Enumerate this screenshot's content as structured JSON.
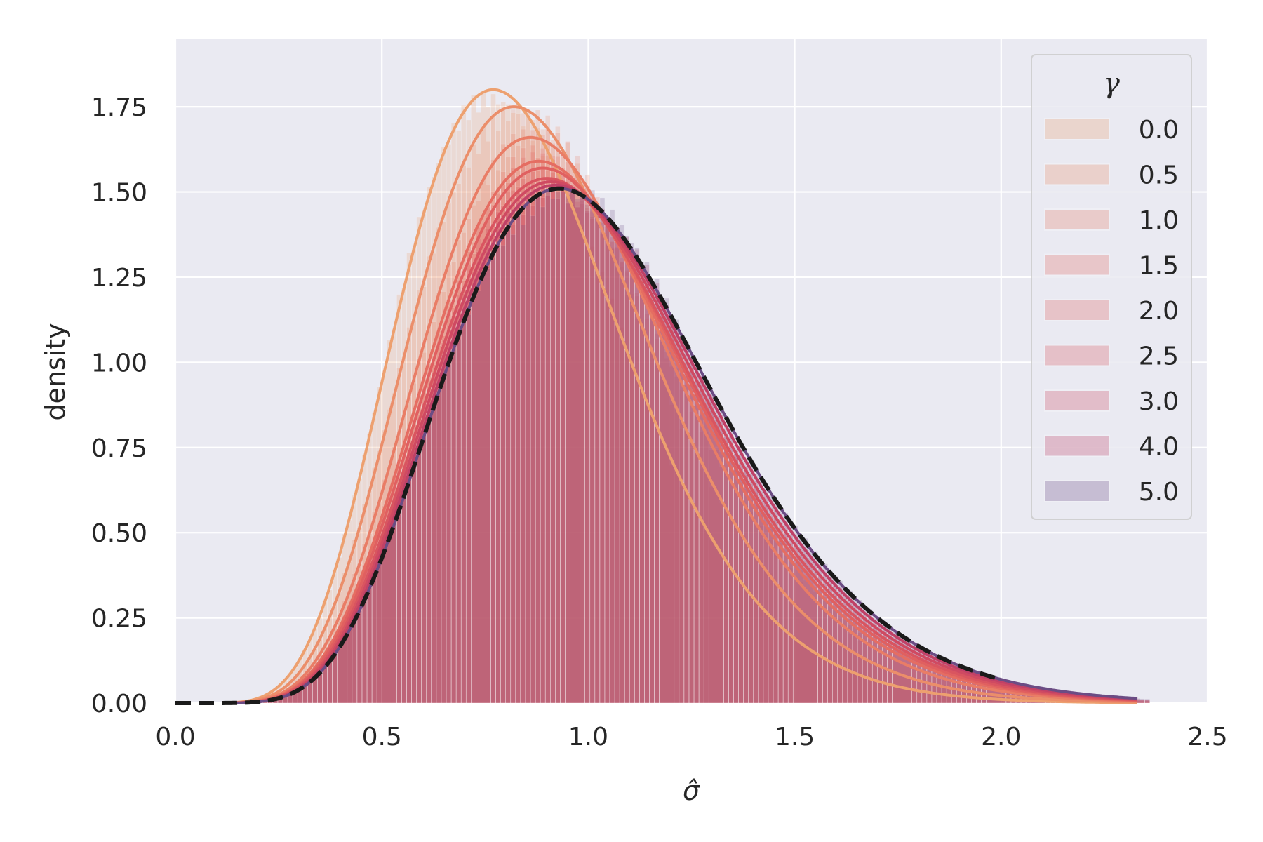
{
  "chart_data": {
    "type": "area",
    "xlabel": "σ̂",
    "ylabel": "density",
    "xlim": [
      0.0,
      2.5
    ],
    "ylim": [
      0.0,
      1.95
    ],
    "xticks": [
      "0.0",
      "0.5",
      "1.0",
      "1.5",
      "2.0",
      "2.5"
    ],
    "yticks": [
      "0.00",
      "0.25",
      "0.50",
      "0.75",
      "1.00",
      "1.25",
      "1.50",
      "1.75"
    ],
    "grid": true,
    "background": "#eaeaf2",
    "legend": {
      "title": "γ",
      "placement": "top-right",
      "entries": [
        "0.0",
        "0.5",
        "1.0",
        "1.5",
        "2.0",
        "2.5",
        "3.0",
        "4.0",
        "5.0"
      ]
    },
    "series": [
      {
        "name": "0.0",
        "color": "#eda06f",
        "mode": 0.77,
        "peak": 1.8
      },
      {
        "name": "0.5",
        "color": "#eb8e6a",
        "mode": 0.82,
        "peak": 1.75
      },
      {
        "name": "1.0",
        "color": "#e97d66",
        "mode": 0.86,
        "peak": 1.66
      },
      {
        "name": "1.5",
        "color": "#e56d62",
        "mode": 0.88,
        "peak": 1.59
      },
      {
        "name": "2.0",
        "color": "#e06060",
        "mode": 0.89,
        "peak": 1.57
      },
      {
        "name": "2.5",
        "color": "#d95560",
        "mode": 0.9,
        "peak": 1.54
      },
      {
        "name": "3.0",
        "color": "#cf4a62",
        "mode": 0.91,
        "peak": 1.53
      },
      {
        "name": "4.0",
        "color": "#c04167",
        "mode": 0.92,
        "peak": 1.52
      },
      {
        "name": "5.0",
        "color": "#6b4c84",
        "mode": 0.93,
        "peak": 1.51
      }
    ],
    "reference_curve": {
      "style": "dashed",
      "color": "#1a1a1a",
      "mode": 0.93,
      "peak": 1.51
    }
  }
}
